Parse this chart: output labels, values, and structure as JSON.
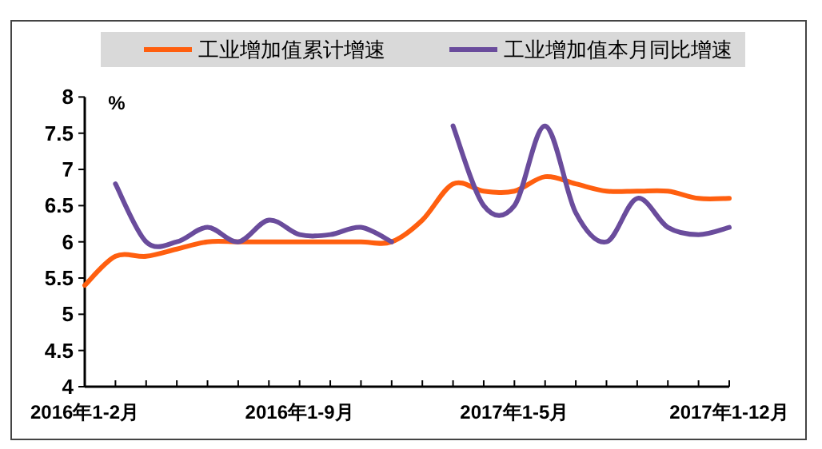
{
  "chart_data": {
    "type": "line",
    "ylabel": "%",
    "legend": "top",
    "grid": false,
    "marker": "none",
    "line_style": "solid",
    "categories": [
      "2016年1-2月",
      null,
      null,
      null,
      null,
      null,
      null,
      "2016年1-9月",
      null,
      null,
      null,
      null,
      null,
      null,
      "2017年1-5月",
      null,
      null,
      null,
      null,
      null,
      null,
      "2017年1-12月"
    ],
    "ylim": [
      4,
      8
    ],
    "yticks": [
      4,
      4.5,
      5,
      5.5,
      6,
      6.5,
      7,
      7.5,
      8
    ],
    "series": [
      {
        "name": "工业增加值累计增速",
        "color": "#ff5f0f",
        "values": [
          5.4,
          5.8,
          5.8,
          5.9,
          6.0,
          6.0,
          6.0,
          6.0,
          6.0,
          6.0,
          6.0,
          6.3,
          6.8,
          6.7,
          6.7,
          6.9,
          6.8,
          6.7,
          6.7,
          6.7,
          6.6,
          6.6
        ]
      },
      {
        "name": "工业增加值本月同比增速",
        "color": "#6a4c9c",
        "values": [
          null,
          6.8,
          6.0,
          6.0,
          6.2,
          6.0,
          6.3,
          6.1,
          6.1,
          6.2,
          6.0,
          null,
          7.6,
          6.5,
          6.5,
          7.6,
          6.4,
          6.0,
          6.6,
          6.2,
          6.1,
          6.2
        ]
      }
    ]
  }
}
